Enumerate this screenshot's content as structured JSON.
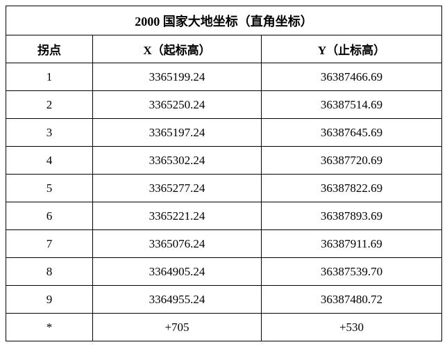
{
  "table": {
    "title": "2000 国家大地坐标（直角坐标）",
    "header": [
      "拐点",
      "X（起标高）",
      "Y（止标高）"
    ],
    "rows": [
      [
        "1",
        "3365199.24",
        "36387466.69"
      ],
      [
        "2",
        "3365250.24",
        "36387514.69"
      ],
      [
        "3",
        "3365197.24",
        "36387645.69"
      ],
      [
        "4",
        "3365302.24",
        "36387720.69"
      ],
      [
        "5",
        "3365277.24",
        "36387822.69"
      ],
      [
        "6",
        "3365221.24",
        "36387893.69"
      ],
      [
        "7",
        "3365076.24",
        "36387911.69"
      ],
      [
        "8",
        "3364905.24",
        "36387539.70"
      ],
      [
        "9",
        "3364955.24",
        "36387480.72"
      ],
      [
        "*",
        "+705",
        "+530"
      ]
    ]
  }
}
